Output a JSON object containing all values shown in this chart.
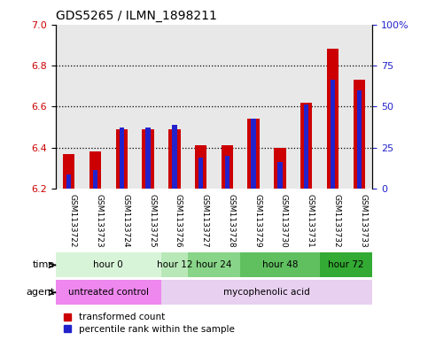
{
  "title": "GDS5265 / ILMN_1898211",
  "samples": [
    "GSM1133722",
    "GSM1133723",
    "GSM1133724",
    "GSM1133725",
    "GSM1133726",
    "GSM1133727",
    "GSM1133728",
    "GSM1133729",
    "GSM1133730",
    "GSM1133731",
    "GSM1133732",
    "GSM1133733"
  ],
  "red_values": [
    6.37,
    6.38,
    6.49,
    6.49,
    6.49,
    6.41,
    6.41,
    6.54,
    6.4,
    6.62,
    6.88,
    6.73
  ],
  "blue_values": [
    6.27,
    6.29,
    6.5,
    6.5,
    6.51,
    6.35,
    6.36,
    6.54,
    6.33,
    6.61,
    6.73,
    6.68
  ],
  "y_min": 6.2,
  "y_max": 7.0,
  "y_ticks_left": [
    6.2,
    6.4,
    6.6,
    6.8,
    7.0
  ],
  "y_ticks_right_vals": [
    0,
    25,
    50,
    75,
    100
  ],
  "y_ticks_right_labels": [
    "0",
    "25",
    "50",
    "75",
    "100%"
  ],
  "time_groups": [
    {
      "label": "hour 0",
      "start": 0,
      "end": 3,
      "color": "#d8f4d8"
    },
    {
      "label": "hour 12",
      "start": 4,
      "end": 4,
      "color": "#b8e8b8"
    },
    {
      "label": "hour 24",
      "start": 5,
      "end": 6,
      "color": "#88d488"
    },
    {
      "label": "hour 48",
      "start": 7,
      "end": 9,
      "color": "#60c060"
    },
    {
      "label": "hour 72",
      "start": 10,
      "end": 11,
      "color": "#33aa33"
    }
  ],
  "agent_groups": [
    {
      "label": "untreated control",
      "start": 0,
      "end": 3,
      "color": "#ee88ee"
    },
    {
      "label": "mycophenolic acid",
      "start": 4,
      "end": 11,
      "color": "#e8d0f0"
    }
  ],
  "bar_color_red": "#cc0000",
  "bar_color_blue": "#2222cc",
  "bar_width": 0.45,
  "blue_bar_width": 0.18,
  "plot_bg": "#e8e8e8",
  "left_axis_color": "#cc0000",
  "right_axis_color": "#2222cc"
}
